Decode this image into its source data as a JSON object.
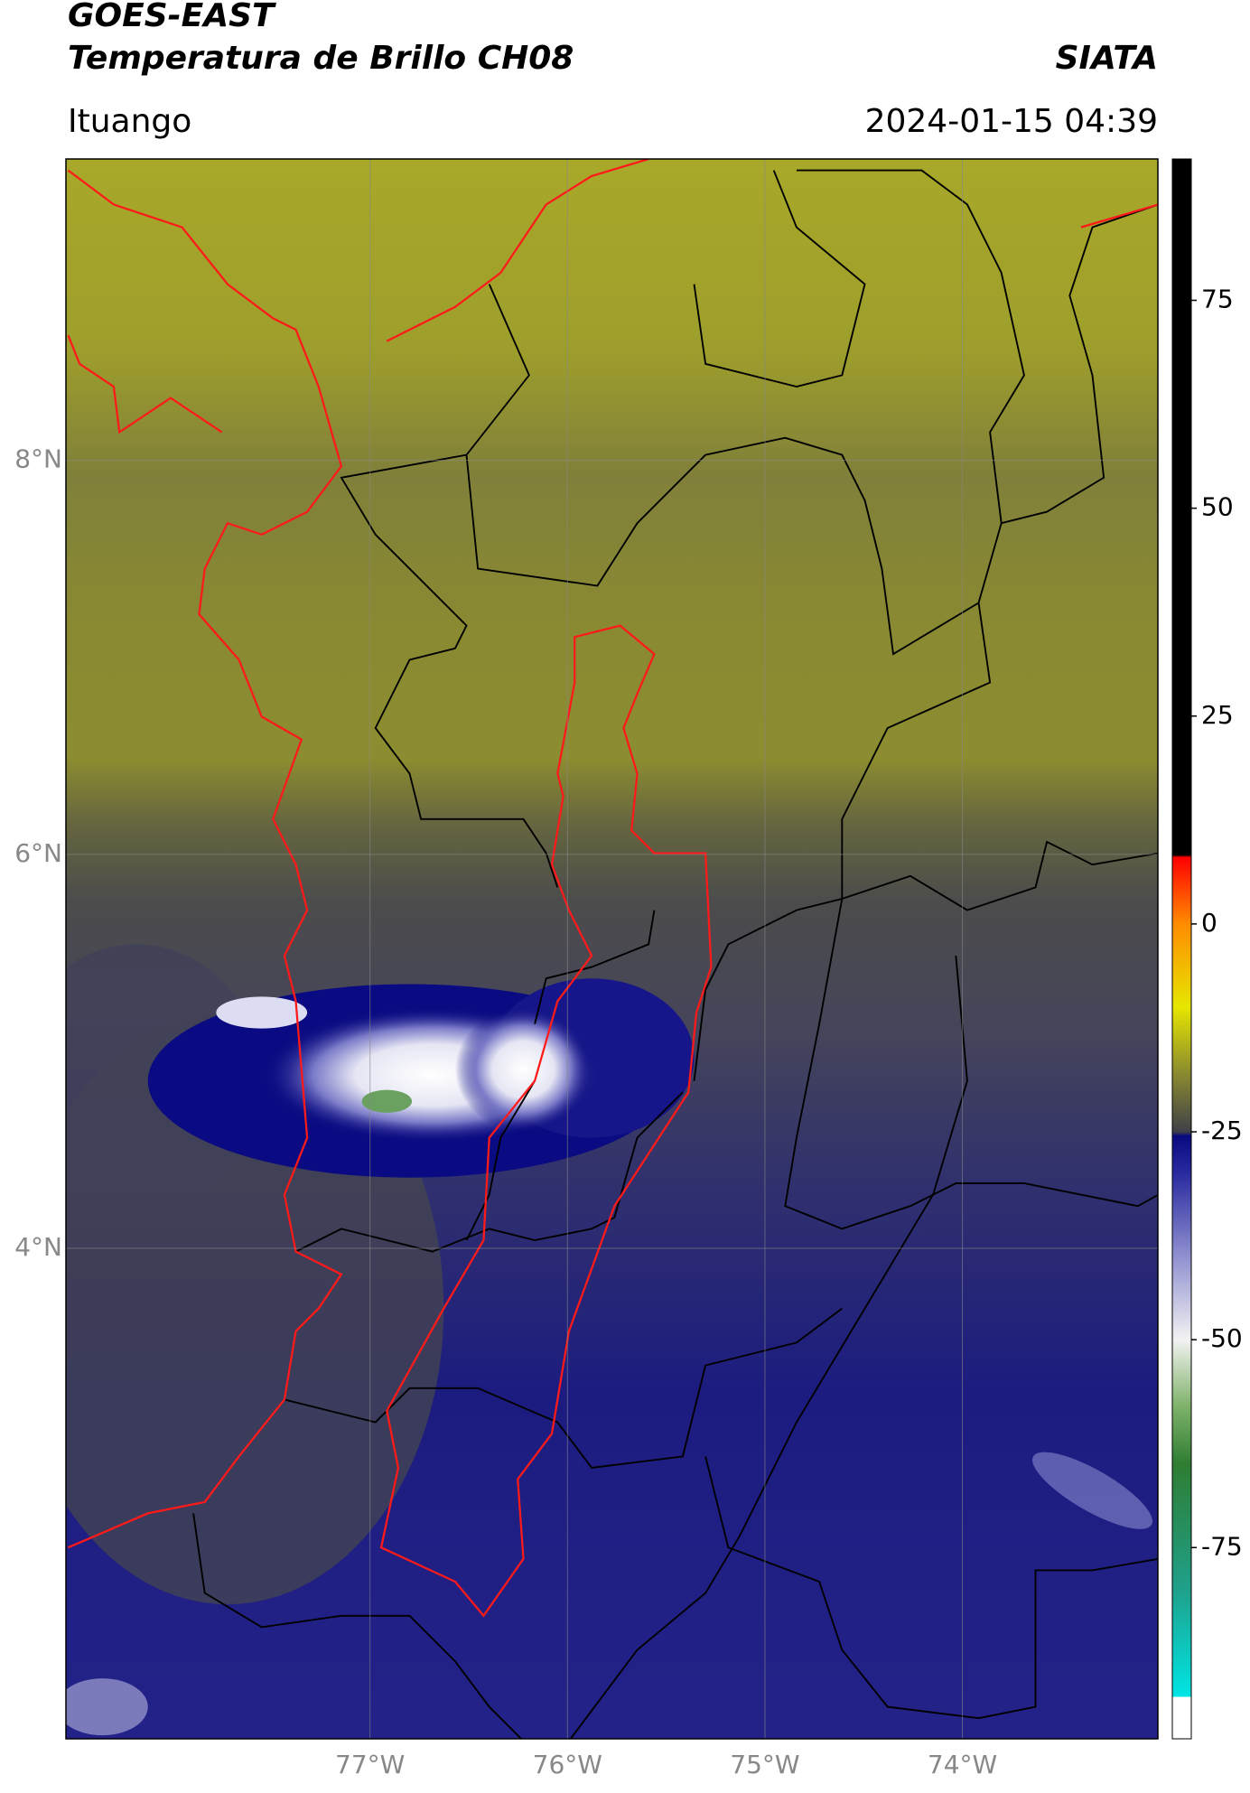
{
  "header": {
    "title_line1": "GOES-EAST",
    "title_line2": "Temperatura de Brillo CH08",
    "source": "SIATA",
    "region": "Ituango",
    "datetime": "2024-01-15 04:39"
  },
  "map": {
    "lonlim": [
      -78.54,
      -73.01
    ],
    "latlim": [
      1.51,
      9.53
    ],
    "lonticks": [
      {
        "value": -77,
        "label": "77°W"
      },
      {
        "value": -76,
        "label": "76°W"
      },
      {
        "value": -75,
        "label": "75°W"
      },
      {
        "value": -74,
        "label": "74°W"
      }
    ],
    "latticks": [
      {
        "value": 8,
        "label": "8°N"
      },
      {
        "value": 6,
        "label": "6°N"
      },
      {
        "value": 4,
        "label": "4°N"
      }
    ],
    "grid": true
  },
  "colorbar": {
    "lim": [
      -98,
      92
    ],
    "ticks": [
      75,
      50,
      25,
      0,
      -25,
      -50,
      -75
    ],
    "stops": [
      {
        "value": -98,
        "color": "#ffffff"
      },
      {
        "value": -93,
        "color": "#ffffff"
      },
      {
        "value": -92.9,
        "color": "#00e5e5"
      },
      {
        "value": -80,
        "color": "#1fa08a"
      },
      {
        "value": -65,
        "color": "#2e7d32"
      },
      {
        "value": -58,
        "color": "#7fb26a"
      },
      {
        "value": -50,
        "color": "#f2f2f2"
      },
      {
        "value": -40,
        "color": "#9090d0"
      },
      {
        "value": -30,
        "color": "#2a2aa0"
      },
      {
        "value": -25.5,
        "color": "#0a0a80"
      },
      {
        "value": -25,
        "color": "#404048"
      },
      {
        "value": -18,
        "color": "#8a8a30"
      },
      {
        "value": -10,
        "color": "#e6e600"
      },
      {
        "value": 0,
        "color": "#ff8c00"
      },
      {
        "value": 8,
        "color": "#ff0000"
      },
      {
        "value": 8.3,
        "color": "#000000"
      },
      {
        "value": 92,
        "color": "#000000"
      }
    ]
  }
}
